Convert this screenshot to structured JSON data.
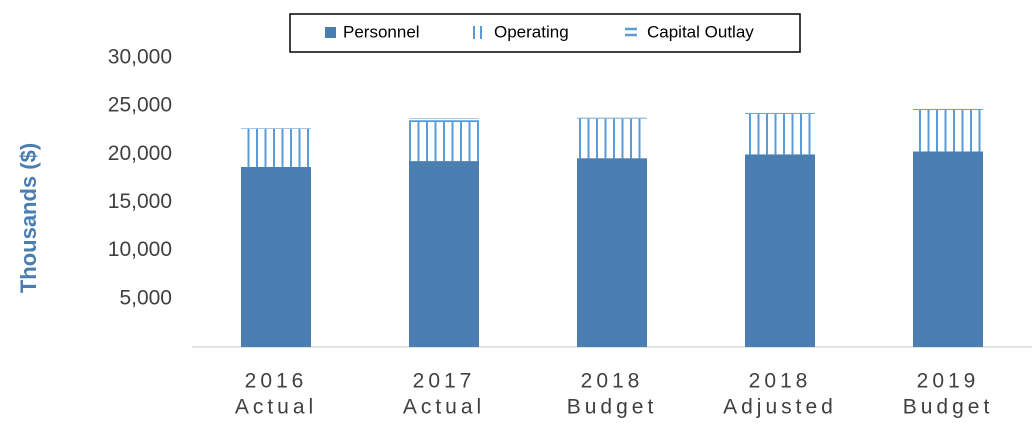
{
  "chart_data": {
    "type": "bar",
    "stacked": true,
    "y_label": "Thousands ($)",
    "categories": [
      [
        "2016",
        "Actual"
      ],
      [
        "2017",
        "Actual"
      ],
      [
        "2018",
        "Budget"
      ],
      [
        "2018",
        "Adjusted"
      ],
      [
        "2019",
        "Budget"
      ]
    ],
    "series": [
      {
        "name": "Personnel",
        "color": "#4a7eb0",
        "pattern": "solid",
        "values": [
          18700,
          19300,
          19600,
          20000,
          20300
        ]
      },
      {
        "name": "Operating",
        "color": "#5b9bd5",
        "pattern": "vertical",
        "values": [
          3950,
          4050,
          4100,
          4200,
          4300
        ]
      },
      {
        "name": "Capital Outlay",
        "color": "#5b9bd5",
        "pattern": "horizontal",
        "values": [
          100,
          400,
          100,
          100,
          100
        ]
      }
    ],
    "ylim": [
      0,
      30000
    ],
    "yticks": [
      {
        "value": 5000,
        "label": "5,000"
      },
      {
        "value": 10000,
        "label": "10,000"
      },
      {
        "value": 15000,
        "label": "15,000"
      },
      {
        "value": 20000,
        "label": "20,000"
      },
      {
        "value": 25000,
        "label": "25,000"
      },
      {
        "value": 30000,
        "label": "30,000"
      }
    ],
    "grid": false,
    "legend": "top"
  }
}
